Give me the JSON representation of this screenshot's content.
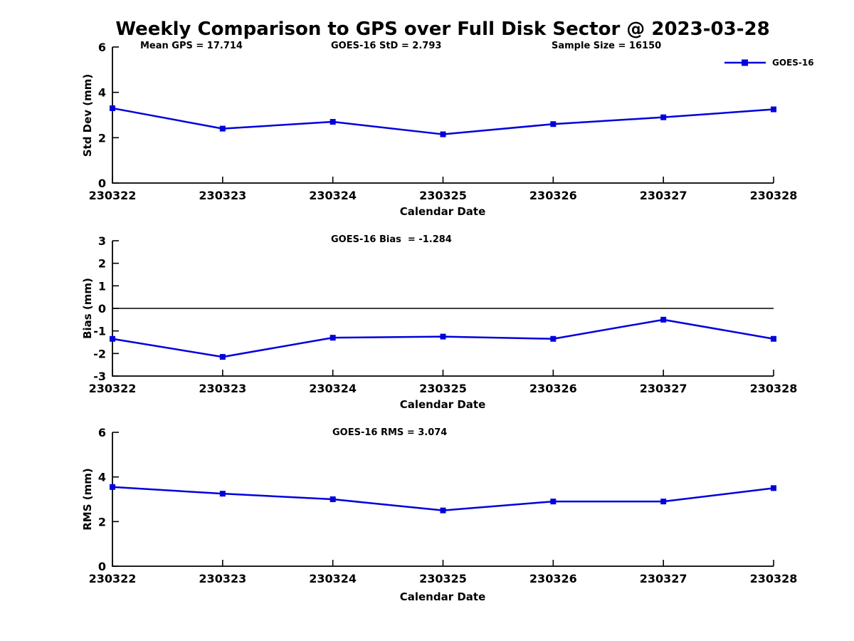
{
  "title": "Weekly Comparison to GPS over Full Disk Sector @ 2023-03-28",
  "legend": {
    "label": "GOES-16",
    "color": "#0000dd"
  },
  "chart_data": [
    {
      "type": "line",
      "name": "std-dev",
      "ylabel": "Std Dev (mm)",
      "xlabel": "Calendar Date",
      "annotations": [
        "Mean GPS = 17.714",
        "GOES-16 StD = 2.793",
        "Sample Size = 16150"
      ],
      "categories": [
        "230322",
        "230323",
        "230324",
        "230325",
        "230326",
        "230327",
        "230328"
      ],
      "ylim": [
        0,
        6
      ],
      "yticks": [
        0,
        2,
        4,
        6
      ],
      "zero_line": false,
      "grid": false,
      "legend_position": "top-right",
      "series": [
        {
          "name": "GOES-16",
          "color": "#0000dd",
          "values": [
            3.3,
            2.4,
            2.7,
            2.15,
            2.6,
            2.9,
            3.25
          ]
        }
      ]
    },
    {
      "type": "line",
      "name": "bias",
      "ylabel": "Bias (mm)",
      "xlabel": "Calendar Date",
      "annotations": [
        "GOES-16 Bias  = -1.284"
      ],
      "categories": [
        "230322",
        "230323",
        "230324",
        "230325",
        "230326",
        "230327",
        "230328"
      ],
      "ylim": [
        -3,
        3
      ],
      "yticks": [
        3,
        2,
        1,
        0,
        -1,
        -2,
        -3
      ],
      "zero_line": true,
      "grid": false,
      "series": [
        {
          "name": "GOES-16",
          "color": "#0000dd",
          "values": [
            -1.35,
            -2.15,
            -1.3,
            -1.25,
            -1.35,
            -0.5,
            -1.35
          ]
        }
      ]
    },
    {
      "type": "line",
      "name": "rms",
      "ylabel": "RMS (mm)",
      "xlabel": "Calendar Date",
      "annotations": [
        "GOES-16 RMS = 3.074"
      ],
      "categories": [
        "230322",
        "230323",
        "230324",
        "230325",
        "230326",
        "230327",
        "230328"
      ],
      "ylim": [
        0,
        6
      ],
      "yticks": [
        0,
        2,
        4,
        6
      ],
      "zero_line": false,
      "grid": false,
      "series": [
        {
          "name": "GOES-16",
          "color": "#0000dd",
          "values": [
            3.55,
            3.25,
            3.0,
            2.5,
            2.9,
            2.9,
            3.5
          ]
        }
      ]
    }
  ]
}
